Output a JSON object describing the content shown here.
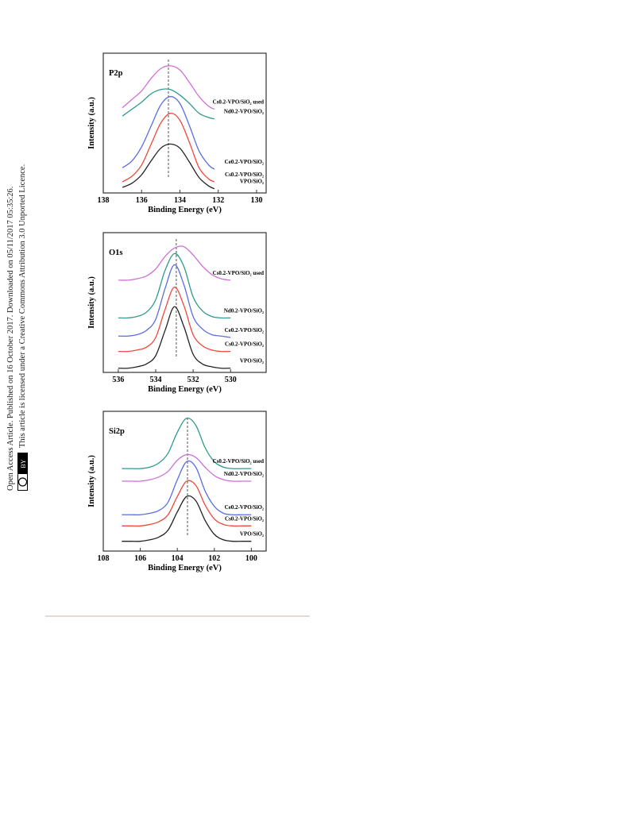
{
  "sidebar": {
    "line1": "Open Access Article. Published on 16 October 2017. Downloaded on 05/11/2017 05:35:26.",
    "line2": "This article is licensed under a Creative Commons Attribution 3.0 Unported Licence.",
    "badge": "BY"
  },
  "chart_data": [
    {
      "type": "line",
      "label": "P2p",
      "x_label": "Binding Energy (eV)",
      "y_label": "Intensity (a.u.)",
      "xlim": [
        138,
        129.5
      ],
      "xticks": [
        138,
        136,
        134,
        132,
        130
      ],
      "ylim": [
        0,
        100
      ],
      "reference_line": 134.6,
      "x": [
        137,
        136.5,
        136,
        135.5,
        135,
        134.5,
        134,
        133.5,
        133,
        132.5,
        132.2
      ],
      "series": [
        {
          "name": "VPO/SiO₂",
          "color": "#222222",
          "values": [
            4,
            7,
            13,
            23,
            32,
            35,
            32,
            22,
            11,
            5,
            3
          ]
        },
        {
          "name": "Cs0.2-VPO/SiO₂",
          "color": "#f0483c",
          "values": [
            8,
            12,
            20,
            35,
            50,
            57,
            52,
            36,
            18,
            10,
            8
          ]
        },
        {
          "name": "Ce0.2-VPO/SiO₂",
          "color": "#5a6ee0",
          "values": [
            18,
            23,
            33,
            48,
            63,
            69,
            64,
            48,
            30,
            20,
            17
          ]
        },
        {
          "name": "Nd0.2-VPO/SiO₂",
          "color": "#2f9a8c",
          "values": [
            55,
            60,
            65,
            71,
            74,
            74,
            70,
            64,
            57,
            54,
            53
          ]
        },
        {
          "name": "Cs0.2-VPO/SiO₂ used",
          "color": "#d070d8",
          "values": [
            61,
            67,
            73,
            82,
            89,
            91,
            88,
            79,
            69,
            62,
            60
          ]
        }
      ]
    },
    {
      "type": "line",
      "label": "O1s",
      "x_label": "Binding Energy (eV)",
      "y_label": "Intensity (a.u.)",
      "xlim": [
        536.8,
        528.1
      ],
      "xticks": [
        536,
        534,
        532,
        530
      ],
      "ylim": [
        0,
        100
      ],
      "reference_line": 532.9,
      "x": [
        536,
        535.5,
        535,
        534.5,
        534,
        533.5,
        533,
        532.5,
        532,
        531.5,
        531,
        530.5,
        530
      ],
      "series": [
        {
          "name": "VPO/SiO₂",
          "color": "#222222",
          "values": [
            3,
            3,
            4,
            6,
            12,
            30,
            47,
            33,
            13,
            6,
            4,
            3,
            3
          ]
        },
        {
          "name": "Cs0.2-VPO/SiO₂",
          "color": "#f0483c",
          "values": [
            15,
            15,
            16,
            18,
            25,
            45,
            61,
            48,
            27,
            19,
            16,
            15,
            15
          ]
        },
        {
          "name": "Ce0.2-VPO/SiO₂",
          "color": "#5a6ee0",
          "values": [
            26,
            26,
            27,
            30,
            38,
            60,
            77,
            63,
            40,
            31,
            27,
            26,
            25
          ]
        },
        {
          "name": "Nd0.2-VPO/SiO₂",
          "color": "#2f9a8c",
          "values": [
            39,
            39,
            40,
            43,
            52,
            73,
            85,
            76,
            54,
            44,
            40,
            39,
            39
          ]
        },
        {
          "name": "Cs0.2-VPO/SiO₂ used",
          "color": "#d070d8",
          "values": [
            66,
            66,
            67,
            69,
            74,
            83,
            89,
            90,
            84,
            76,
            70,
            67,
            66
          ]
        }
      ]
    },
    {
      "type": "line",
      "label": "Si2p",
      "x_label": "Binding Energy (eV)",
      "y_label": "Intensity (a.u.)",
      "xlim": [
        108,
        99.2
      ],
      "xticks": [
        108,
        106,
        104,
        102,
        100
      ],
      "ylim": [
        0,
        100
      ],
      "reference_line": 103.45,
      "x": [
        107,
        106.5,
        106,
        105.5,
        105,
        104.5,
        104,
        103.5,
        103,
        102.5,
        102,
        101.5,
        101,
        100.5,
        100
      ],
      "series": [
        {
          "name": "VPO/SiO₂",
          "color": "#222222",
          "values": [
            7,
            7,
            7,
            8,
            10,
            15,
            28,
            39,
            36,
            22,
            12,
            8,
            7,
            7,
            7
          ]
        },
        {
          "name": "Cs0.2-VPO/SiO₂",
          "color": "#f0483c",
          "values": [
            18,
            18,
            18,
            19,
            21,
            26,
            39,
            50,
            47,
            33,
            23,
            19,
            18,
            18,
            18
          ]
        },
        {
          "name": "Ce0.2-VPO/SiO₂",
          "color": "#5a6ee0",
          "values": [
            26,
            26,
            26,
            27,
            29,
            35,
            51,
            64,
            60,
            43,
            32,
            27,
            26,
            26,
            26
          ]
        },
        {
          "name": "Nd0.2-VPO/SiO₂",
          "color": "#d070d8",
          "values": [
            50,
            50,
            50,
            51,
            53,
            57,
            65,
            69,
            67,
            60,
            54,
            51,
            50,
            50,
            50
          ]
        },
        {
          "name": "Cs0.2-VPO/SiO₂ used",
          "color": "#2f9a8c",
          "values": [
            59,
            59,
            59,
            60,
            63,
            70,
            85,
            95,
            90,
            74,
            64,
            60,
            59,
            59,
            59
          ]
        }
      ]
    }
  ]
}
